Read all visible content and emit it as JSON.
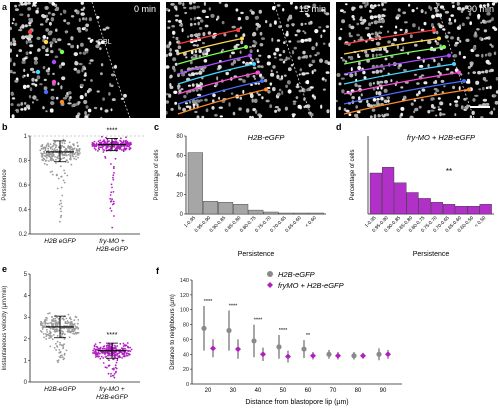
{
  "panel_a": {
    "letter": "a",
    "frames": [
      {
        "time": "0 min"
      },
      {
        "time": "15 min"
      },
      {
        "time": "90 min"
      }
    ],
    "dbl_label": "DBL",
    "track_colors": [
      "#ff3b3b",
      "#ffd84d",
      "#7cff5a",
      "#b14bff",
      "#49d7ff",
      "#ff4bd8",
      "#4b6bff",
      "#ff8c2a"
    ]
  },
  "chart_data": [
    {
      "panel": "b",
      "type": "scatter",
      "ylabel": "Persistence",
      "yticks": [
        "0.2",
        "0.4",
        "0.6",
        "0.8",
        "1"
      ],
      "ylim": [
        0.2,
        1.0
      ],
      "categories": [
        "H2B eGFP",
        "fry-MO + H2B-eGFP"
      ],
      "series": [
        {
          "name": "H2B eGFP",
          "mean": 0.87,
          "sd_low": 0.79,
          "sd_high": 0.96,
          "min": 0.3,
          "color": "#9a9a9a"
        },
        {
          "name": "fry-MO + H2B-eGFP",
          "mean": 0.93,
          "sd_low": 0.88,
          "sd_high": 0.98,
          "min": 0.25,
          "color": "#b020c0"
        }
      ],
      "significance": "****"
    },
    {
      "panel": "c",
      "type": "bar",
      "title": "H2B-eGFP",
      "ylabel": "Percentage of cells",
      "xlabel": "Persistence",
      "ylim": [
        0,
        80
      ],
      "yticks": [
        "0",
        "20",
        "40",
        "60",
        "80"
      ],
      "categories": [
        "1-0.95",
        "0.95-0.90",
        "0.90-0.85",
        "0.85-0.80",
        "0.80-0.75",
        "0.75-0.70",
        "0.70-0.65",
        "0.65-0.60",
        "< 0.60"
      ],
      "values": [
        63,
        13,
        12,
        10,
        4,
        2,
        1,
        1,
        1
      ],
      "color": "#a6a6a6"
    },
    {
      "panel": "d",
      "type": "bar",
      "title": "fry-MO + H2B-eGFP",
      "ylabel": "Percentage of cells",
      "xlabel": "Persistence",
      "ylim": [
        0,
        40
      ],
      "categories": [
        "1-0.95",
        "0.95-0.90",
        "0.90-0.85",
        "0.85-0.80",
        "0.80-0.75",
        "0.75-0.70",
        "0.70-0.65",
        "0.65-0.60",
        "0.60-0.50",
        "< 0.50"
      ],
      "values": [
        21,
        24,
        16,
        11,
        8,
        6,
        5,
        4,
        4,
        5
      ],
      "color": "#b030c8",
      "significance": "**"
    },
    {
      "panel": "e",
      "type": "scatter",
      "ylabel": "Instantaneous velocity (µm/min)",
      "yticks": [
        "0",
        "1",
        "2",
        "3",
        "4",
        "5"
      ],
      "ylim": [
        0,
        5
      ],
      "categories": [
        "H2B-eGFP",
        "fry-MO + H2B-eGFP"
      ],
      "series": [
        {
          "name": "H2B-eGFP",
          "mean": 2.55,
          "sd_low": 2.05,
          "sd_high": 3.05,
          "min": 0.9,
          "max": 4.6,
          "color": "#9a9a9a"
        },
        {
          "name": "fry-MO + H2B-eGFP",
          "mean": 1.45,
          "sd_low": 1.1,
          "sd_high": 1.8,
          "min": 0.2,
          "max": 3.4,
          "color": "#b020c0"
        }
      ],
      "significance": "****"
    },
    {
      "panel": "f",
      "type": "scatter",
      "xlabel": "Distance from blastopore lip (µm)",
      "ylabel": "Distance to neighbours (µm)",
      "ylim": [
        0,
        140
      ],
      "yticks": [
        "0",
        "20",
        "40",
        "60",
        "80",
        "100",
        "120",
        "140"
      ],
      "categories": [
        "20",
        "30",
        "40",
        "50",
        "60",
        "70",
        "80",
        "90"
      ],
      "legend": "top-right",
      "series": [
        {
          "name": "H2B-eGFP",
          "color": "#8a8a8a",
          "values": [
            75,
            72,
            58,
            50,
            47,
            40,
            38,
            40
          ],
          "err": [
            30,
            27,
            22,
            16,
            12,
            6,
            5,
            8
          ]
        },
        {
          "name": "fryMO + H2B-eGFP",
          "color": "#b020c0",
          "values": [
            48,
            47,
            40,
            37,
            38,
            38,
            38,
            40
          ],
          "err": [
            12,
            13,
            9,
            8,
            5,
            5,
            4,
            6
          ]
        }
      ],
      "significance": [
        "****",
        "****",
        "****",
        "****",
        "**",
        "",
        "",
        ""
      ]
    }
  ]
}
